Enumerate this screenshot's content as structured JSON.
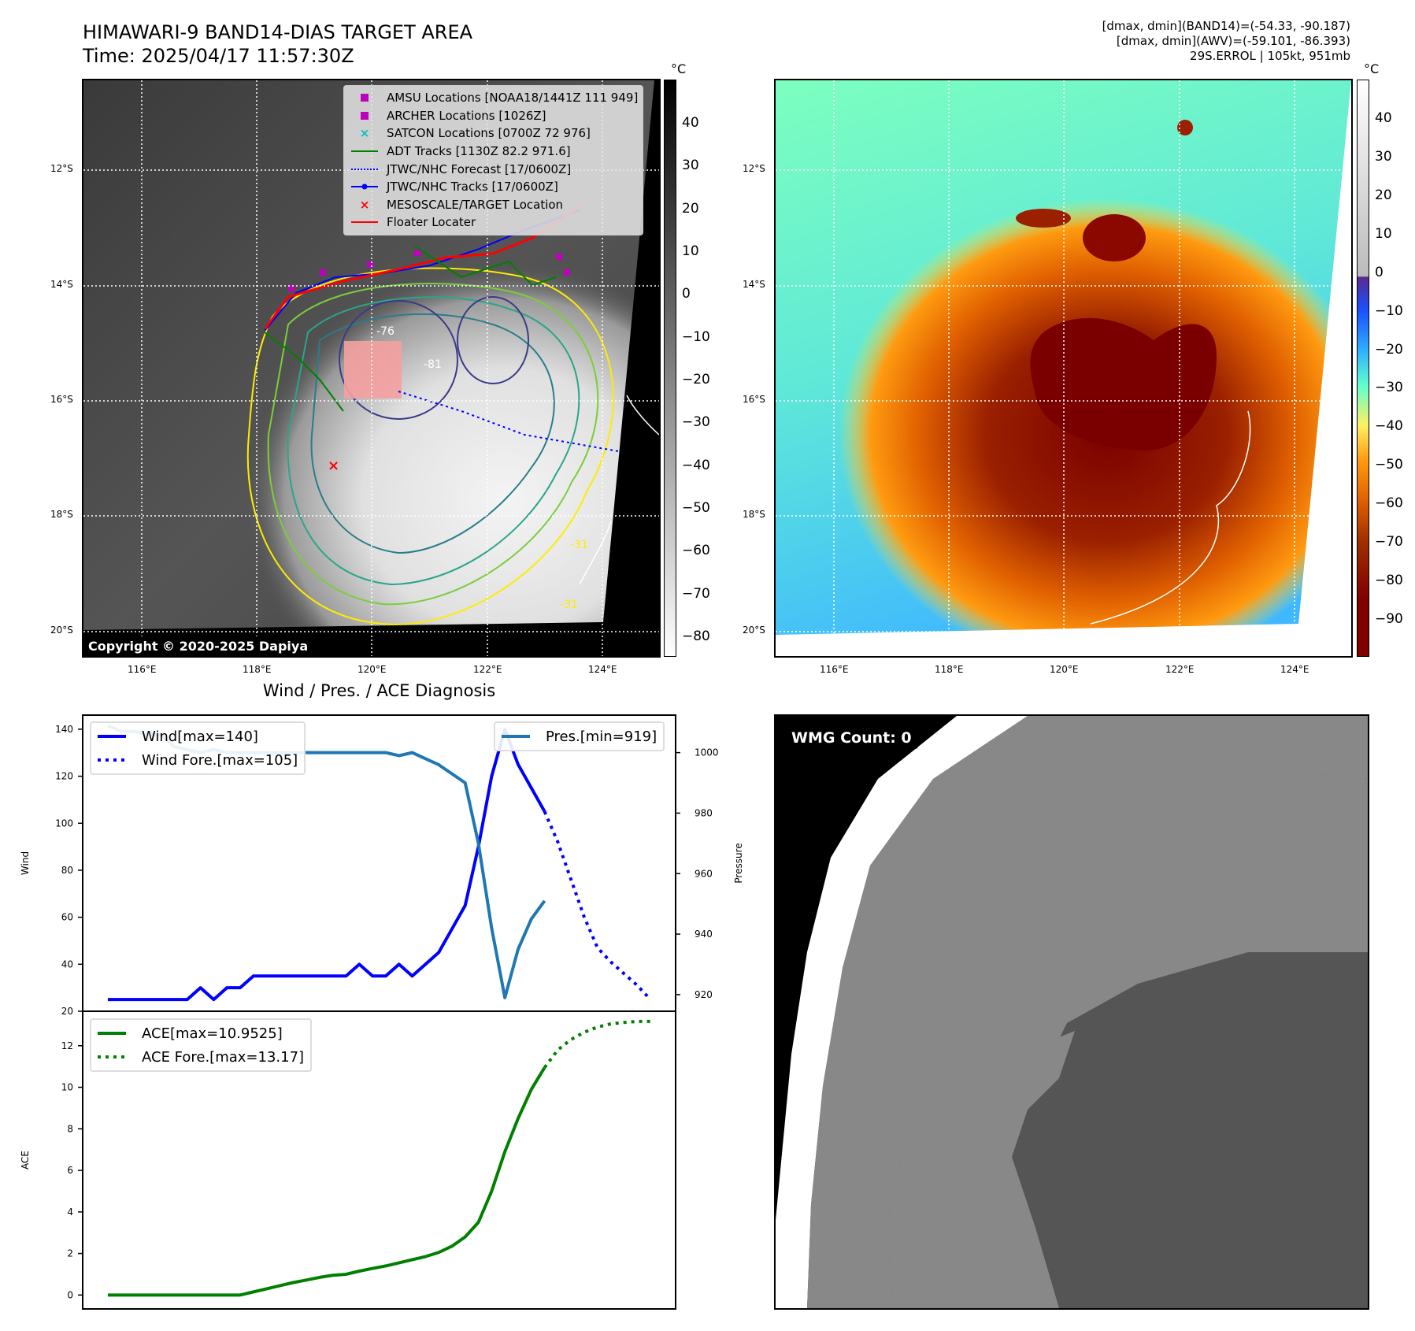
{
  "header": {
    "title_line1": "HIMAWARI-9 BAND14-DIAS TARGET AREA",
    "title_line2": "Time: 2025/04/17 11:57:30Z",
    "info_line1": "[dmax, dmin](BAND14)=(-54.33, -90.187)",
    "info_line2": "[dmax, dmin](AWV)=(-59.101, -86.393)",
    "info_line3": "29S.ERROL | 105kt, 951mb"
  },
  "map": {
    "lat_labels": [
      "12°S",
      "14°S",
      "16°S",
      "18°S",
      "20°S"
    ],
    "lon_labels": [
      "116°E",
      "118°E",
      "120°E",
      "122°E",
      "124°E"
    ],
    "copyright": "Copyright © 2020-2025 Dapiya",
    "contour_labels": [
      "-76",
      "-81",
      "-31",
      "-31"
    ],
    "legend": [
      {
        "label": "AMSU Locations [NOAA18/1441Z 111 949]",
        "icon": "square-marker",
        "color": "#bf00bf"
      },
      {
        "label": "ARCHER Locations [1026Z]",
        "icon": "square-marker",
        "color": "#bf00bf"
      },
      {
        "label": "SATCON Locations [0700Z 72 976]",
        "icon": "x-marker",
        "color": "#00bfbf"
      },
      {
        "label": "ADT Tracks [1130Z 82.2 971.6]",
        "icon": "line",
        "color": "#008000"
      },
      {
        "label": "JTWC/NHC Forecast [17/0600Z]",
        "icon": "dotted-line",
        "color": "#0000ff"
      },
      {
        "label": "JTWC/NHC Tracks [17/0600Z]",
        "icon": "line-dot",
        "color": "#0000ff"
      },
      {
        "label": "MESOSCALE/TARGET Location",
        "icon": "x-marker",
        "color": "#ff0000"
      },
      {
        "label": "Floater Locater",
        "icon": "line",
        "color": "#ff0000"
      }
    ]
  },
  "colorbar_left": {
    "unit": "°C",
    "ticks": [
      "40",
      "30",
      "20",
      "10",
      "0",
      "−10",
      "−20",
      "−30",
      "−40",
      "−50",
      "−60",
      "−70",
      "−80"
    ]
  },
  "colorbar_right": {
    "unit": "°C",
    "ticks": [
      "40",
      "30",
      "20",
      "10",
      "0",
      "−10",
      "−20",
      "−30",
      "−40",
      "−50",
      "−60",
      "−70",
      "−80",
      "−90"
    ]
  },
  "wmg": {
    "label": "WMG Count: 0"
  },
  "chart_data": [
    {
      "type": "line",
      "title": "Wind / Pres. / ACE Diagnosis",
      "ylabel": "Wind",
      "ylabel_right": "Pressure",
      "xlim": [
        -1.9,
        42.9
      ],
      "ylim": [
        20,
        146
      ],
      "ylim_right": [
        914.5,
        1012.4
      ],
      "yticks": [
        20,
        40,
        60,
        80,
        100,
        120,
        140
      ],
      "yticks_right": [
        920,
        940,
        960,
        980,
        1000
      ],
      "grid": false,
      "series": [
        {
          "name": "Wind[max=140]",
          "axis": "left",
          "color": "#0000ff",
          "style": "solid",
          "x": [
            0,
            1,
            2,
            3,
            4,
            5,
            6,
            7,
            8,
            9,
            10,
            11,
            12,
            13,
            14,
            15,
            16,
            17,
            18,
            19,
            20,
            21,
            22,
            23,
            24,
            25,
            26,
            27,
            28,
            29,
            30,
            31,
            32,
            33
          ],
          "values": [
            25,
            25,
            25,
            25,
            25,
            25,
            25,
            30,
            25,
            30,
            30,
            35,
            35,
            35,
            35,
            35,
            35,
            35,
            35,
            40,
            35,
            35,
            40,
            35,
            40,
            45,
            55,
            65,
            90,
            120,
            140,
            125,
            115,
            105
          ]
        },
        {
          "name": "Wind Fore.[max=105]",
          "axis": "left",
          "color": "#0000ff",
          "style": "dotted",
          "x": [
            33,
            34,
            35,
            36,
            37,
            38,
            39,
            40,
            41
          ],
          "values": [
            105,
            92,
            76,
            60,
            47,
            41,
            36,
            31,
            25
          ]
        },
        {
          "name": "Pres.[min=919]",
          "axis": "right",
          "color": "#1f77b4",
          "style": "solid",
          "x": [
            0,
            1,
            2,
            3,
            4,
            5,
            6,
            7,
            8,
            9,
            10,
            11,
            12,
            13,
            14,
            15,
            16,
            17,
            18,
            19,
            20,
            21,
            22,
            23,
            24,
            25,
            26,
            27,
            28,
            29,
            30,
            31,
            32,
            33
          ],
          "values": [
            1009,
            1007,
            1007,
            1006,
            1006,
            1002,
            1001,
            1000,
            1001,
            1000,
            1000,
            1000,
            1000,
            1000,
            1000,
            1000,
            1000,
            1000,
            1000,
            1000,
            1000,
            1000,
            999,
            1000,
            998,
            996,
            993,
            990,
            970,
            942,
            919,
            935,
            945,
            951
          ]
        }
      ],
      "legend_left": [
        "Wind[max=140]",
        "Wind Fore.[max=105]"
      ],
      "legend_right": [
        "Pres.[min=919]"
      ],
      "legend_placement": [
        "upper-left",
        "upper-right"
      ]
    },
    {
      "type": "line",
      "ylabel": "ACE",
      "xlim": [
        -1.9,
        42.9
      ],
      "ylim": [
        -0.67,
        13.66
      ],
      "yticks": [
        0,
        2,
        4,
        6,
        8,
        10,
        12
      ],
      "grid": false,
      "series": [
        {
          "name": "ACE[max=10.9525]",
          "color": "#008000",
          "style": "solid",
          "x": [
            0,
            1,
            2,
            3,
            4,
            5,
            6,
            7,
            8,
            9,
            10,
            11,
            12,
            13,
            14,
            15,
            16,
            17,
            18,
            19,
            20,
            21,
            22,
            23,
            24,
            25,
            26,
            27,
            28,
            29,
            30,
            31,
            32,
            33
          ],
          "values": [
            0,
            0,
            0,
            0,
            0,
            0,
            0,
            0,
            0,
            0,
            0,
            0.15,
            0.3,
            0.45,
            0.6,
            0.72,
            0.85,
            0.95,
            1.0,
            1.15,
            1.28,
            1.4,
            1.55,
            1.7,
            1.85,
            2.05,
            2.35,
            2.8,
            3.5,
            5.0,
            6.9,
            8.5,
            9.9,
            10.95
          ]
        },
        {
          "name": "ACE Fore.[max=13.17]",
          "color": "#008000",
          "style": "dotted",
          "x": [
            33,
            34,
            35,
            36,
            37,
            38,
            39,
            40,
            41
          ],
          "values": [
            10.95,
            11.8,
            12.3,
            12.65,
            12.9,
            13.05,
            13.12,
            13.17,
            13.17
          ]
        }
      ],
      "legend": [
        "ACE[max=10.9525]",
        "ACE Fore.[max=13.17]"
      ],
      "legend_placement": "upper-left"
    }
  ]
}
